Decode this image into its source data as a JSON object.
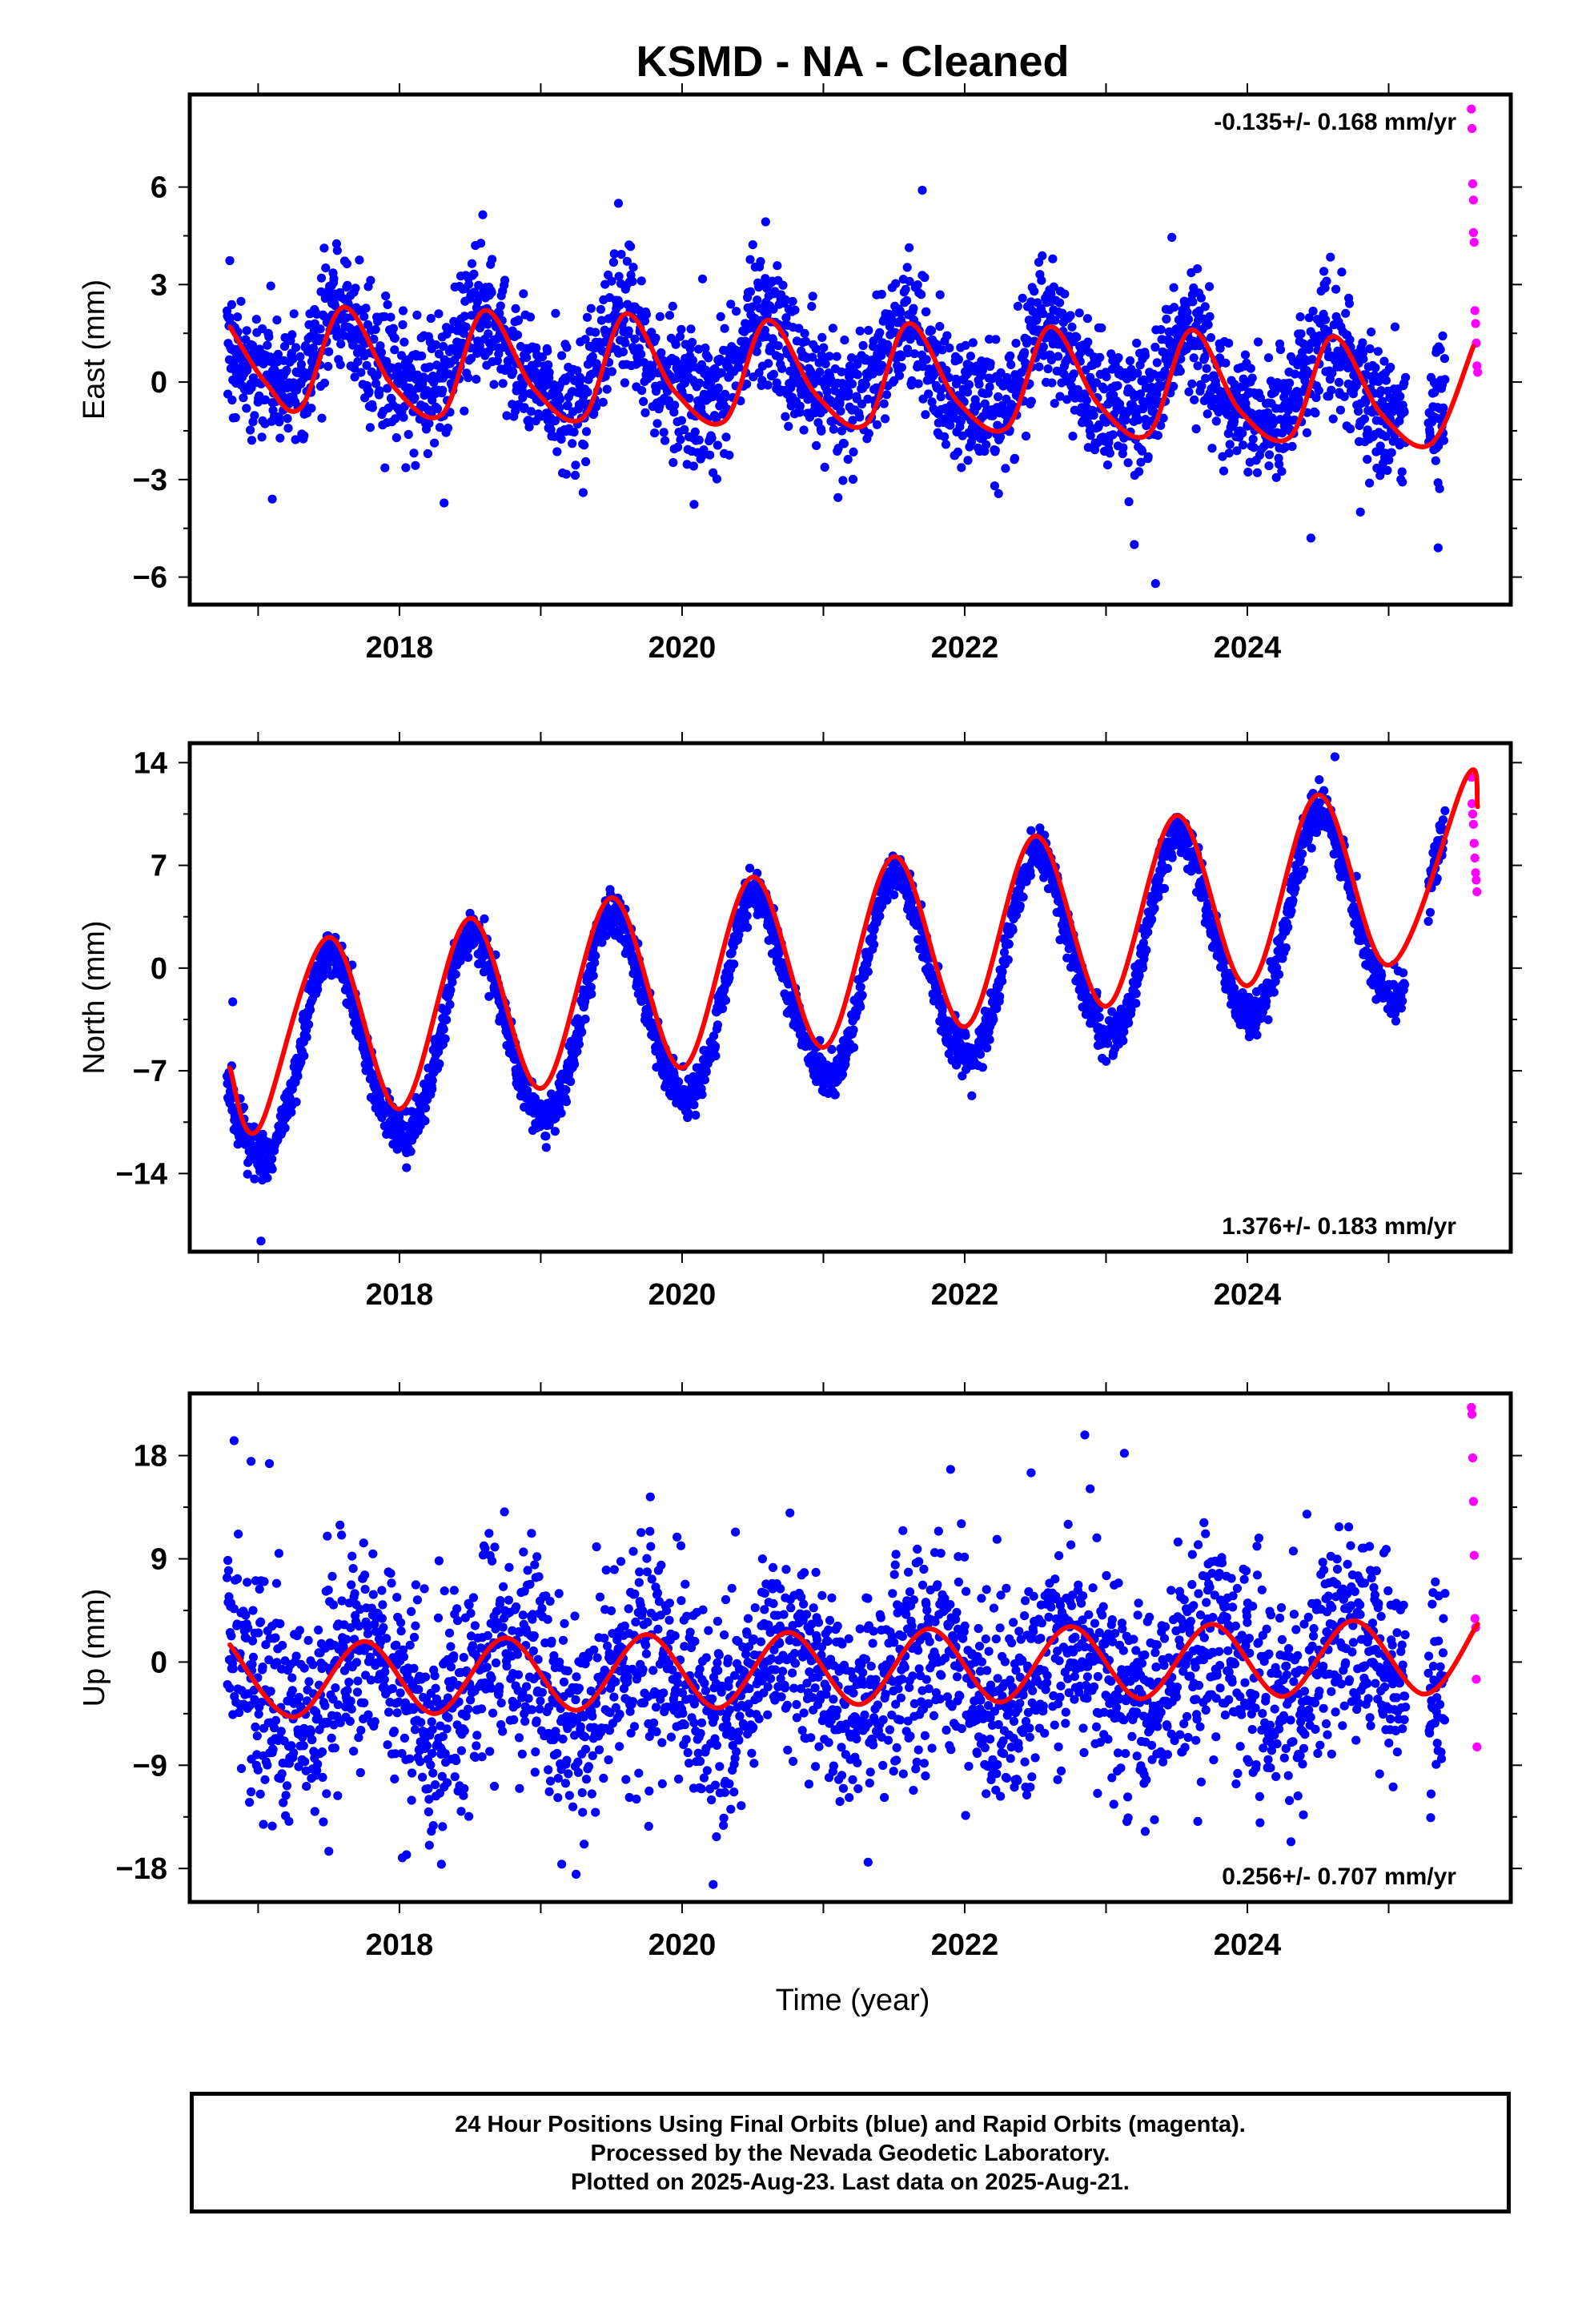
{
  "chart_data": {
    "type": "scatter",
    "title": "KSMD  - NA - Cleaned",
    "xlabel": "Time (year)",
    "xlim": [
      2016.55,
      2025.83
    ],
    "x_ticks": [
      2018,
      2020,
      2022,
      2024
    ],
    "x_tick_labels": [
      "2018",
      "2020",
      "2022",
      "2024"
    ],
    "colors": {
      "final": "#0000ff",
      "rapid": "#ff00ff",
      "model": "#ff0000",
      "axes": "#000000"
    },
    "series_desc": [
      {
        "name": "Final Orbits (blue)",
        "color": "#0000ff"
      },
      {
        "name": "Rapid Orbits (magenta)",
        "color": "#ff00ff"
      },
      {
        "name": "Model fit",
        "color": "#ff0000"
      }
    ],
    "data_range": {
      "start": 2016.78,
      "end_final": 2025.4,
      "gap": [
        2025.12,
        2025.28
      ],
      "end": 2025.63
    },
    "panels": [
      {
        "id": "east",
        "ylabel": "East (mm)",
        "ylim": [
          -6.7,
          8.7
        ],
        "y_ticks": [
          -6,
          -3,
          0,
          3,
          6
        ],
        "y_tick_labels": [
          "−6",
          "−3",
          "0",
          "3",
          "6"
        ],
        "rate_text": "-0.135+/- 0.168 mm/yr",
        "rate_position": "top-right",
        "rate": -0.135,
        "annual_amplitude": 1.2,
        "semiannual_amplitude": 0.35,
        "phase_peak": 0.6,
        "offset": 0.35,
        "noise": 1.0,
        "model_points": [
          {
            "x": 2016.8,
            "y": 1.7
          },
          {
            "x": 2017.05,
            "y": 0.0
          },
          {
            "x": 2017.3,
            "y": -0.8
          },
          {
            "x": 2017.6,
            "y": 2.3
          },
          {
            "x": 2017.95,
            "y": -0.1
          },
          {
            "x": 2018.3,
            "y": -1.0
          },
          {
            "x": 2018.6,
            "y": 2.2
          },
          {
            "x": 2018.95,
            "y": -0.2
          },
          {
            "x": 2019.3,
            "y": -1.1
          },
          {
            "x": 2019.6,
            "y": 2.1
          },
          {
            "x": 2019.95,
            "y": -0.3
          },
          {
            "x": 2020.3,
            "y": -1.2
          },
          {
            "x": 2020.6,
            "y": 1.9
          },
          {
            "x": 2020.95,
            "y": -0.4
          },
          {
            "x": 2021.3,
            "y": -1.3
          },
          {
            "x": 2021.6,
            "y": 1.8
          },
          {
            "x": 2021.95,
            "y": -0.6
          },
          {
            "x": 2022.3,
            "y": -1.4
          },
          {
            "x": 2022.6,
            "y": 1.7
          },
          {
            "x": 2022.95,
            "y": -0.7
          },
          {
            "x": 2023.3,
            "y": -1.6
          },
          {
            "x": 2023.6,
            "y": 1.6
          },
          {
            "x": 2023.95,
            "y": -0.9
          },
          {
            "x": 2024.3,
            "y": -1.7
          },
          {
            "x": 2024.6,
            "y": 1.4
          },
          {
            "x": 2024.95,
            "y": -1.0
          },
          {
            "x": 2025.3,
            "y": -1.9
          },
          {
            "x": 2025.6,
            "y": 1.1
          }
        ],
        "rapid_points": [
          {
            "x": 2025.585,
            "y": 8.4
          },
          {
            "x": 2025.59,
            "y": 7.8
          },
          {
            "x": 2025.595,
            "y": 6.1
          },
          {
            "x": 2025.6,
            "y": 5.6
          },
          {
            "x": 2025.6,
            "y": 4.6
          },
          {
            "x": 2025.605,
            "y": 4.3
          },
          {
            "x": 2025.61,
            "y": 2.2
          },
          {
            "x": 2025.615,
            "y": 1.8
          },
          {
            "x": 2025.62,
            "y": 1.2
          },
          {
            "x": 2025.625,
            "y": 0.5
          },
          {
            "x": 2025.63,
            "y": 0.3
          }
        ],
        "outliers": [
          {
            "x": 2021.7,
            "y": 5.9
          },
          {
            "x": 2019.55,
            "y": 5.5
          },
          {
            "x": 2023.35,
            "y": -6.2
          },
          {
            "x": 2025.35,
            "y": -5.1
          },
          {
            "x": 2023.2,
            "y": -5.0
          },
          {
            "x": 2017.1,
            "y": -3.6
          },
          {
            "x": 2024.45,
            "y": -4.8
          },
          {
            "x": 2024.8,
            "y": -4.0
          },
          {
            "x": 2019.3,
            "y": -3.4
          }
        ]
      },
      {
        "id": "north",
        "ylabel": "North (mm)",
        "ylim": [
          -19,
          15
        ],
        "y_ticks": [
          -14,
          -7,
          0,
          7,
          14
        ],
        "y_tick_labels": [
          "−14",
          "−7",
          "0",
          "7",
          "14"
        ],
        "rate_text": "1.376+/- 0.183 mm/yr",
        "rate_position": "bottom-right",
        "rate": 1.376,
        "annual_amplitude": 6.6,
        "semiannual_amplitude": 0.5,
        "phase_peak": 0.52,
        "offset": -1.2,
        "noise": 0.75,
        "model_points": [
          {
            "x": 2016.8,
            "y": -6.8
          },
          {
            "x": 2017.0,
            "y": -11.0
          },
          {
            "x": 2017.5,
            "y": 2.1
          },
          {
            "x": 2018.0,
            "y": -9.6
          },
          {
            "x": 2018.5,
            "y": 3.4
          },
          {
            "x": 2019.0,
            "y": -8.2
          },
          {
            "x": 2019.5,
            "y": 4.8
          },
          {
            "x": 2020.0,
            "y": -6.8
          },
          {
            "x": 2020.5,
            "y": 6.2
          },
          {
            "x": 2021.0,
            "y": -5.4
          },
          {
            "x": 2021.5,
            "y": 7.6
          },
          {
            "x": 2022.0,
            "y": -4.0
          },
          {
            "x": 2022.5,
            "y": 9.0
          },
          {
            "x": 2023.0,
            "y": -2.6
          },
          {
            "x": 2023.5,
            "y": 10.4
          },
          {
            "x": 2024.0,
            "y": -1.2
          },
          {
            "x": 2024.5,
            "y": 11.8
          },
          {
            "x": 2025.0,
            "y": 0.2
          },
          {
            "x": 2025.55,
            "y": 13.0
          },
          {
            "x": 2025.63,
            "y": 11.0
          }
        ],
        "rapid_points": [
          {
            "x": 2025.585,
            "y": 13.0
          },
          {
            "x": 2025.59,
            "y": 11.2
          },
          {
            "x": 2025.595,
            "y": 10.5
          },
          {
            "x": 2025.6,
            "y": 9.8
          },
          {
            "x": 2025.605,
            "y": 8.5
          },
          {
            "x": 2025.61,
            "y": 7.5
          },
          {
            "x": 2025.615,
            "y": 6.5
          },
          {
            "x": 2025.62,
            "y": 6.0
          },
          {
            "x": 2025.625,
            "y": 5.2
          }
        ],
        "outliers": [
          {
            "x": 2016.82,
            "y": -2.3
          },
          {
            "x": 2017.02,
            "y": -18.6
          },
          {
            "x": 2022.05,
            "y": -8.7
          },
          {
            "x": 2018.05,
            "y": -13.6
          },
          {
            "x": 2025.05,
            "y": -2.6
          },
          {
            "x": 2024.62,
            "y": 14.4
          }
        ]
      },
      {
        "id": "up",
        "ylabel": "Up (mm)",
        "ylim": [
          -20.5,
          23
        ],
        "y_ticks": [
          -18,
          -9,
          0,
          9,
          18
        ],
        "y_tick_labels": [
          "−18",
          "−9",
          "0",
          "9",
          "18"
        ],
        "rate_text": "0.256+/- 0.707 mm/yr",
        "rate_position": "bottom-right",
        "rate": 0.256,
        "annual_amplitude": 3.3,
        "semiannual_amplitude": 0.0,
        "phase_peak": 0.75,
        "offset": -1.2,
        "noise": 4.6,
        "model_points": [
          {
            "x": 2016.8,
            "y": 1.5
          },
          {
            "x": 2017.25,
            "y": -4.8
          },
          {
            "x": 2017.75,
            "y": 1.8
          },
          {
            "x": 2018.25,
            "y": -4.5
          },
          {
            "x": 2018.75,
            "y": 2.1
          },
          {
            "x": 2019.25,
            "y": -4.2
          },
          {
            "x": 2019.75,
            "y": 2.4
          },
          {
            "x": 2020.25,
            "y": -4.0
          },
          {
            "x": 2020.75,
            "y": 2.6
          },
          {
            "x": 2021.25,
            "y": -3.7
          },
          {
            "x": 2021.75,
            "y": 2.9
          },
          {
            "x": 2022.25,
            "y": -3.5
          },
          {
            "x": 2022.75,
            "y": 3.1
          },
          {
            "x": 2023.25,
            "y": -3.2
          },
          {
            "x": 2023.75,
            "y": 3.3
          },
          {
            "x": 2024.25,
            "y": -3.0
          },
          {
            "x": 2024.75,
            "y": 3.6
          },
          {
            "x": 2025.25,
            "y": -2.8
          },
          {
            "x": 2025.63,
            "y": 3.3
          }
        ],
        "rapid_points": [
          {
            "x": 2025.585,
            "y": 22.2
          },
          {
            "x": 2025.59,
            "y": 21.6
          },
          {
            "x": 2025.595,
            "y": 17.8
          },
          {
            "x": 2025.6,
            "y": 14.0
          },
          {
            "x": 2025.605,
            "y": 9.3
          },
          {
            "x": 2025.61,
            "y": 3.8
          },
          {
            "x": 2025.615,
            "y": 3.0
          },
          {
            "x": 2025.62,
            "y": -1.5
          },
          {
            "x": 2025.625,
            "y": -7.4
          }
        ],
        "outliers": [
          {
            "x": 2016.83,
            "y": 19.3
          },
          {
            "x": 2016.95,
            "y": 17.5
          },
          {
            "x": 2017.08,
            "y": 17.3
          },
          {
            "x": 2022.85,
            "y": 19.8
          },
          {
            "x": 2023.13,
            "y": 18.2
          },
          {
            "x": 2022.47,
            "y": 16.5
          },
          {
            "x": 2021.9,
            "y": 16.8
          },
          {
            "x": 2020.22,
            "y": -19.4
          },
          {
            "x": 2019.25,
            "y": -18.5
          },
          {
            "x": 2018.05,
            "y": -16.8
          },
          {
            "x": 2017.5,
            "y": -16.5
          },
          {
            "x": 2017.1,
            "y": -14.3
          },
          {
            "x": 2025.3,
            "y": -11.5
          },
          {
            "x": 2023.27,
            "y": -9.8
          },
          {
            "x": 2024.0,
            "y": -8.5
          }
        ]
      }
    ]
  },
  "footer": {
    "lines": [
      "24 Hour Positions Using Final Orbits (blue) and Rapid Orbits (magenta).",
      "Processed by the Nevada Geodetic Laboratory.",
      "Plotted on 2025-Aug-23. Last data on 2025-Aug-21."
    ]
  }
}
